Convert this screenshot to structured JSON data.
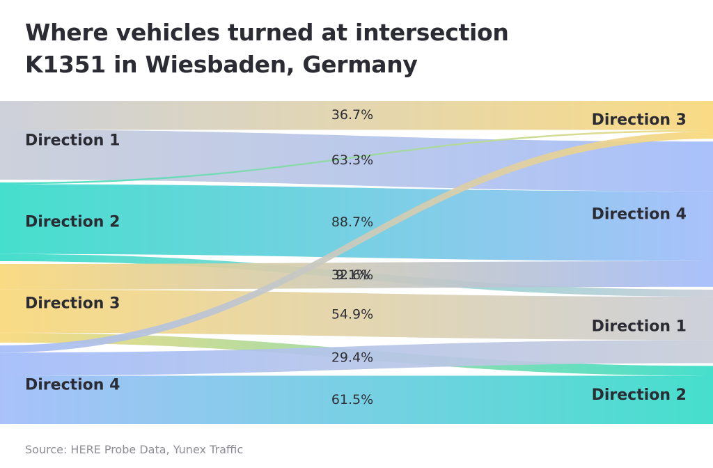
{
  "title_lines": [
    "Where vehicles turned at intersection",
    "K1351 in Wiesbaden, Germany"
  ],
  "source": "Source: HERE Probe Data, Yunex Traffic",
  "colors": {
    "direction_1": "#c9cdd8",
    "direction_2": "#36dcc8",
    "direction_3": "#f9d87a",
    "direction_4": "#a2bcfa",
    "title": "#2b2b33",
    "source": "#8d8d95"
  },
  "chart_data": {
    "type": "sankey",
    "title": "Where vehicles turned at intersection K1351 in Wiesbaden, Germany",
    "sources": [
      {
        "id": "d1",
        "name": "Direction 1",
        "color_key": "direction_1"
      },
      {
        "id": "d2",
        "name": "Direction 2",
        "color_key": "direction_2"
      },
      {
        "id": "d3",
        "name": "Direction 3",
        "color_key": "direction_3"
      },
      {
        "id": "d4",
        "name": "Direction 4",
        "color_key": "direction_4"
      }
    ],
    "targets": [
      {
        "id": "d3",
        "name": "Direction 3",
        "color_key": "direction_3"
      },
      {
        "id": "d4",
        "name": "Direction 4",
        "color_key": "direction_4"
      },
      {
        "id": "d1",
        "name": "Direction 1",
        "color_key": "direction_1"
      },
      {
        "id": "d2",
        "name": "Direction 2",
        "color_key": "direction_2"
      }
    ],
    "flows": [
      {
        "from": "d1",
        "to": "d3",
        "value": 36.7,
        "label": "36.7%"
      },
      {
        "from": "d1",
        "to": "d4",
        "value": 63.3,
        "label": "63.3%"
      },
      {
        "from": "d2",
        "to": "d3",
        "value": 2.2,
        "label": ""
      },
      {
        "from": "d2",
        "to": "d4",
        "value": 88.7,
        "label": "88.7%"
      },
      {
        "from": "d2",
        "to": "d1",
        "value": 9.1,
        "label": "9.1%"
      },
      {
        "from": "d3",
        "to": "d4",
        "value": 32.6,
        "label": "32.6%"
      },
      {
        "from": "d3",
        "to": "d1",
        "value": 54.9,
        "label": "54.9%"
      },
      {
        "from": "d3",
        "to": "d2",
        "value": 12.5,
        "label": ""
      },
      {
        "from": "d4",
        "to": "d3",
        "value": 9.1,
        "label": ""
      },
      {
        "from": "d4",
        "to": "d1",
        "value": 29.4,
        "label": "29.4%"
      },
      {
        "from": "d4",
        "to": "d2",
        "value": 61.5,
        "label": "61.5%"
      }
    ]
  }
}
